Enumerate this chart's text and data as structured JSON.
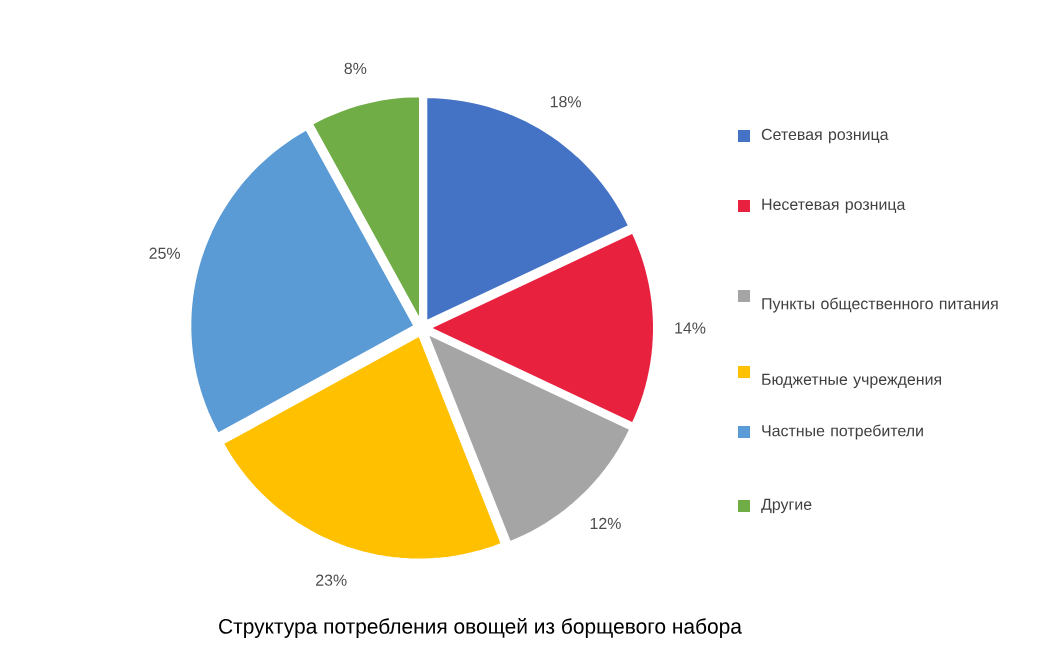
{
  "chart_data": {
    "type": "pie",
    "title": "Структура потребления овощей из борщевого набора",
    "categories": [
      "Сетевая розница",
      "Несетевая розница",
      "Пункты общественного питания",
      "Бюджетные учреждения",
      "Частные потребители",
      "Другие"
    ],
    "values": [
      18,
      14,
      12,
      23,
      25,
      8
    ],
    "colors": [
      "#4472c4",
      "#e8213f",
      "#a5a5a5",
      "#ffc000",
      "#5b9bd5",
      "#70ad47"
    ],
    "value_labels": [
      "18%",
      "14%",
      "12%",
      "23%",
      "25%",
      "8%"
    ],
    "legend": "right"
  }
}
